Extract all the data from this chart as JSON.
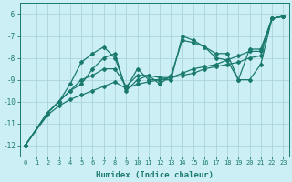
{
  "xlabel": "Humidex (Indice chaleur)",
  "background_color": "#cceef5",
  "grid_color": "#aad4dc",
  "line_color": "#1a7a6e",
  "xlim": [
    -0.5,
    23.5
  ],
  "ylim": [
    -12.5,
    -5.5
  ],
  "yticks": [
    -12,
    -11,
    -10,
    -9,
    -8,
    -7,
    -6
  ],
  "xticks": [
    0,
    1,
    2,
    3,
    4,
    5,
    6,
    7,
    8,
    9,
    10,
    11,
    12,
    13,
    14,
    15,
    16,
    17,
    18,
    19,
    20,
    21,
    22,
    23
  ],
  "series": [
    {
      "x": [
        0,
        2,
        3,
        4,
        5,
        6,
        7,
        8,
        9,
        10,
        11,
        12,
        13,
        14,
        15,
        16,
        17,
        18,
        19,
        20,
        21,
        22,
        23
      ],
      "y": [
        -12.0,
        -10.5,
        -10.0,
        -9.2,
        -8.2,
        -7.8,
        -7.5,
        -8.0,
        -9.4,
        -8.5,
        -9.0,
        -9.0,
        -9.0,
        -7.0,
        -7.2,
        -7.5,
        -8.0,
        -8.1,
        -9.0,
        -7.6,
        -7.6,
        -6.2,
        -6.1
      ]
    },
    {
      "x": [
        0,
        2,
        3,
        4,
        5,
        6,
        7,
        8,
        9,
        10,
        11,
        12,
        13,
        14,
        15,
        16,
        17,
        18,
        19,
        20,
        21,
        22,
        23
      ],
      "y": [
        -12.0,
        -10.5,
        -10.0,
        -9.5,
        -9.0,
        -8.8,
        -8.5,
        -8.5,
        -9.3,
        -8.8,
        -8.8,
        -8.9,
        -8.9,
        -8.7,
        -8.5,
        -8.4,
        -8.3,
        -8.1,
        -7.9,
        -7.7,
        -7.7,
        -6.2,
        -6.1
      ]
    },
    {
      "x": [
        0,
        2,
        3,
        4,
        5,
        6,
        7,
        8,
        9,
        10,
        11,
        12,
        13,
        14,
        15,
        16,
        17,
        18,
        19,
        20,
        21,
        22,
        23
      ],
      "y": [
        -12.0,
        -10.6,
        -10.2,
        -9.9,
        -9.7,
        -9.5,
        -9.3,
        -9.1,
        -9.4,
        -9.2,
        -9.1,
        -9.0,
        -8.9,
        -8.8,
        -8.7,
        -8.5,
        -8.4,
        -8.3,
        -8.2,
        -8.0,
        -7.9,
        -6.2,
        -6.1
      ]
    },
    {
      "x": [
        0,
        2,
        3,
        4,
        5,
        6,
        7,
        8,
        9,
        10,
        11,
        12,
        13,
        14,
        15,
        16,
        17,
        18,
        19,
        20,
        21,
        22,
        23
      ],
      "y": [
        -12.0,
        -10.5,
        -10.0,
        -9.5,
        -9.2,
        -8.5,
        -8.0,
        -7.8,
        -9.5,
        -9.0,
        -8.8,
        -9.2,
        -8.8,
        -7.2,
        -7.3,
        -7.5,
        -7.8,
        -7.8,
        -9.0,
        -9.0,
        -8.3,
        -6.2,
        -6.1
      ]
    }
  ]
}
